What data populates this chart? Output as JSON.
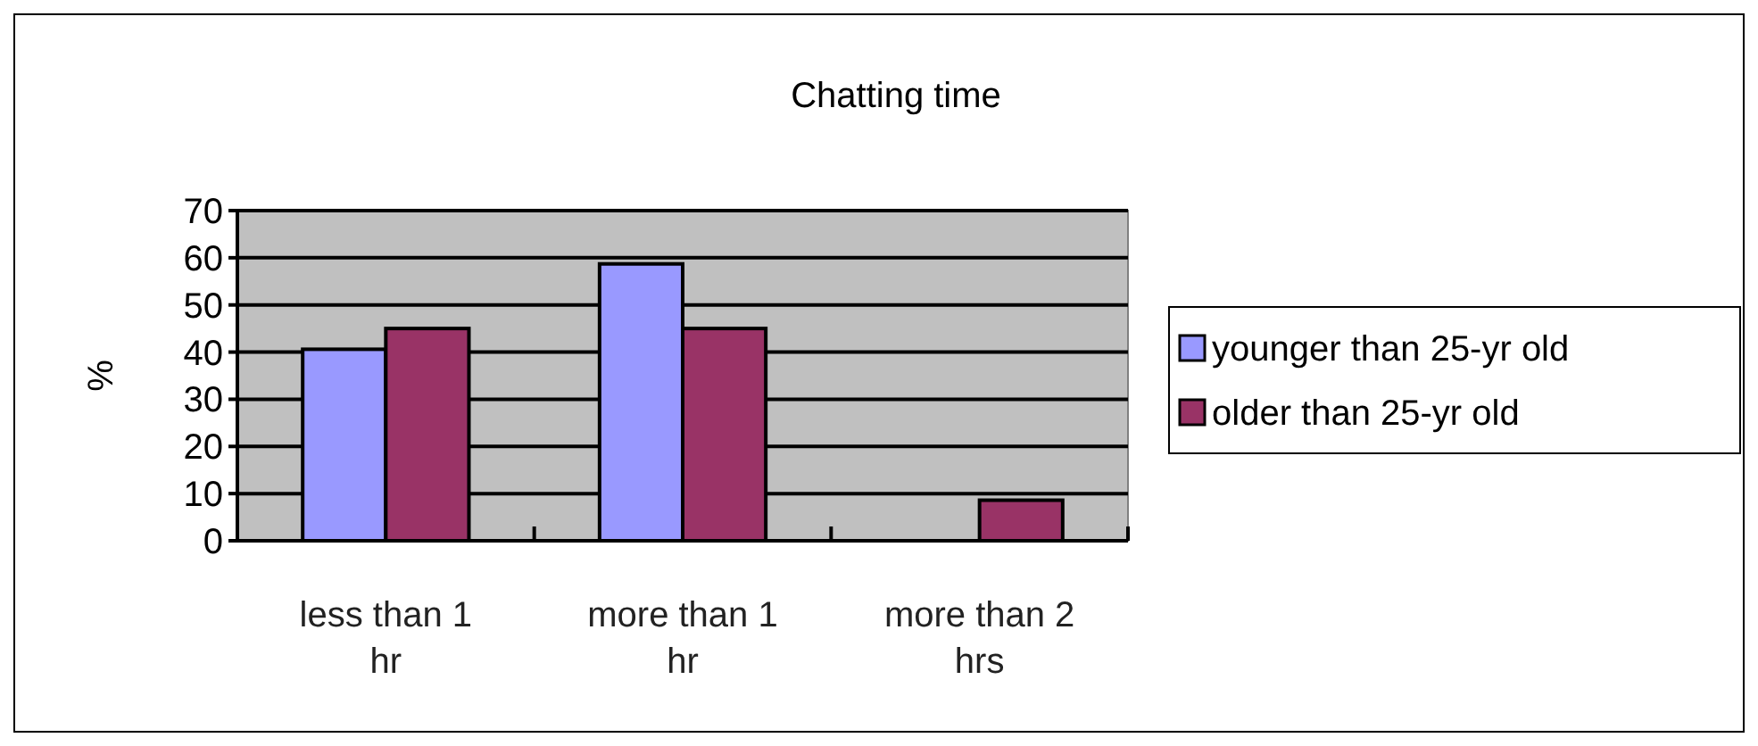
{
  "chart_data": {
    "type": "bar",
    "title": "Chatting time",
    "ylabel": "%",
    "categories": [
      "less than 1 hr",
      "more than 1 hr",
      "more than 2 hrs"
    ],
    "series": [
      {
        "name": "younger than 25-yr old",
        "color": "#9999ff",
        "values": [
          40.6,
          58.7,
          0
        ]
      },
      {
        "name": "older than 25-yr old",
        "color": "#993366",
        "values": [
          45,
          45,
          8.6
        ]
      }
    ],
    "ylim": [
      0,
      70
    ],
    "yticks": [
      0,
      10,
      20,
      30,
      40,
      50,
      60,
      70
    ],
    "grid": "y",
    "legend": "right"
  }
}
